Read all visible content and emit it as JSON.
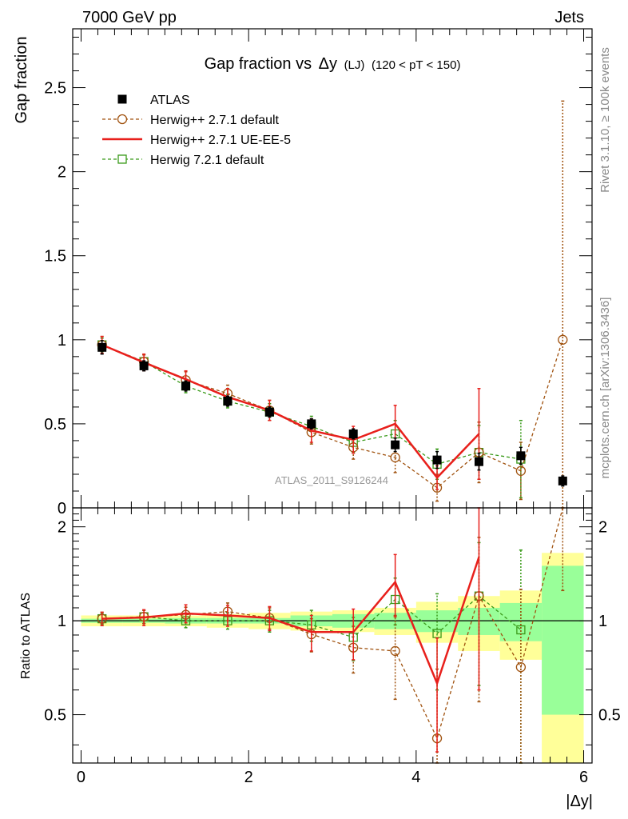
{
  "header": {
    "left": "7000 GeV pp",
    "right": "Jets"
  },
  "side_labels": {
    "rivet": "Rivet 3.1.10, ≥ 100k events",
    "mcplots": "mcplots.cern.ch [arXiv:1306.3436]"
  },
  "watermark": "ATLAS_2011_S9126244",
  "colors": {
    "atlas": "#000000",
    "herwigpp_default": "#a0520f",
    "herwigpp_ueee5": "#e8201c",
    "herwig721": "#3a9a1a",
    "band_yellow": "#ffff99",
    "band_green": "#99ff99"
  },
  "chart_data": [
    {
      "type": "scatter",
      "title_main": "Gap fraction vs",
      "title_var": "Δy",
      "title_tag": "(LJ)",
      "title_cut": "(120 < pT < 150)",
      "ylabel": "Gap fraction",
      "ylim": [
        0,
        2.85
      ],
      "yticks": [
        0,
        0.5,
        1,
        1.5,
        2,
        2.5
      ],
      "ytick_labels": [
        "0",
        "0.5",
        "1",
        "1.5",
        "2",
        "2.5"
      ],
      "xlim": [
        -0.1,
        6.1
      ],
      "x": [
        0.25,
        0.75,
        1.25,
        1.75,
        2.25,
        2.75,
        3.25,
        3.75,
        4.25,
        4.75,
        5.25,
        5.75
      ],
      "series": [
        {
          "name": "ATLAS",
          "style": "data",
          "values": [
            0.955,
            0.845,
            0.725,
            0.635,
            0.57,
            0.5,
            0.44,
            0.375,
            0.285,
            0.275,
            0.31,
            0.16
          ],
          "err": [
            0.04,
            0.03,
            0.03,
            0.03,
            0.03,
            0.03,
            0.03,
            0.04,
            0.05,
            0.05,
            0.05,
            0.03
          ]
        },
        {
          "name": "Herwig++ 2.7.1 default",
          "style": "dashed-circle",
          "values": [
            0.97,
            0.87,
            0.76,
            0.68,
            0.58,
            0.45,
            0.36,
            0.3,
            0.12,
            0.33,
            0.22,
            1.0
          ],
          "err": [
            0.05,
            0.04,
            0.05,
            0.05,
            0.06,
            0.07,
            0.07,
            0.09,
            0.08,
            0.18,
            0.17,
            1.42
          ]
        },
        {
          "name": "Herwig++ 2.7.1 UE-EE-5",
          "style": "solid",
          "values": [
            0.97,
            0.865,
            0.765,
            0.66,
            0.58,
            0.46,
            0.405,
            0.5,
            0.18,
            0.44
          ],
          "err": [
            0.05,
            0.05,
            0.05,
            0.05,
            0.06,
            0.07,
            0.08,
            0.11,
            0.07,
            0.27
          ]
        },
        {
          "name": "Herwig 7.2.1 default",
          "style": "dashed-square",
          "values": [
            0.97,
            0.87,
            0.725,
            0.635,
            0.57,
            0.485,
            0.39,
            0.44,
            0.26,
            0.33,
            0.29
          ],
          "err": [
            0.04,
            0.04,
            0.04,
            0.04,
            0.05,
            0.06,
            0.06,
            0.08,
            0.09,
            0.16,
            0.23
          ]
        }
      ]
    },
    {
      "type": "scatter",
      "ylabel": "Ratio to ATLAS",
      "xlabel": "|Δy|",
      "ylim": [
        0.35,
        2.3
      ],
      "yticks": [
        0.5,
        1,
        2
      ],
      "ytick_labels_left": [
        "0.5",
        "1",
        "2"
      ],
      "ytick_labels_right": [
        "0.5",
        "1",
        "2"
      ],
      "xlim": [
        -0.1,
        6.1
      ],
      "xticks": [
        0,
        2,
        4,
        6
      ],
      "xtick_labels": [
        "0",
        "2",
        "4",
        "6"
      ],
      "bins": [
        [
          0,
          0.5
        ],
        [
          0.5,
          1
        ],
        [
          1,
          1.5
        ],
        [
          1.5,
          2
        ],
        [
          2,
          2.5
        ],
        [
          2.5,
          3
        ],
        [
          3,
          3.5
        ],
        [
          3.5,
          4
        ],
        [
          4,
          4.5
        ],
        [
          4.5,
          5
        ],
        [
          5,
          5.5
        ],
        [
          5.5,
          6
        ]
      ],
      "band_total": [
        0.04,
        0.04,
        0.04,
        0.05,
        0.06,
        0.07,
        0.08,
        0.1,
        0.15,
        0.2,
        0.25,
        0.65
      ],
      "band_stat": [
        0.015,
        0.015,
        0.02,
        0.02,
        0.02,
        0.04,
        0.05,
        0.06,
        0.08,
        0.1,
        0.14,
        0.5
      ],
      "x": [
        0.25,
        0.75,
        1.25,
        1.75,
        2.25,
        2.75,
        3.25,
        3.75,
        4.25,
        4.75,
        5.25,
        5.75
      ],
      "series": [
        {
          "name": "Herwig++ 2.7.1 default",
          "style": "dashed-circle",
          "values": [
            1.015,
            1.03,
            1.045,
            1.07,
            1.02,
            0.905,
            0.82,
            0.8,
            0.42,
            1.2,
            0.71,
            6.25
          ],
          "err": [
            0.05,
            0.05,
            0.06,
            0.07,
            0.08,
            0.11,
            0.14,
            0.24,
            0.28,
            0.65,
            0.55,
            5.0
          ]
        },
        {
          "name": "Herwig++ 2.7.1 UE-EE-5",
          "style": "solid",
          "values": [
            1.015,
            1.025,
            1.055,
            1.04,
            1.02,
            0.92,
            0.92,
            1.33,
            0.63,
            1.6
          ],
          "err": [
            0.05,
            0.06,
            0.07,
            0.08,
            0.09,
            0.12,
            0.17,
            0.3,
            0.25,
            1.0
          ]
        },
        {
          "name": "Herwig 7.2.1 default",
          "style": "dashed-square",
          "values": [
            1.015,
            1.03,
            1.0,
            1.0,
            1.0,
            0.97,
            0.885,
            1.17,
            0.91,
            1.2,
            0.935
          ],
          "err": [
            0.04,
            0.05,
            0.05,
            0.06,
            0.08,
            0.11,
            0.14,
            0.2,
            0.31,
            0.58,
            0.75
          ]
        }
      ]
    }
  ]
}
